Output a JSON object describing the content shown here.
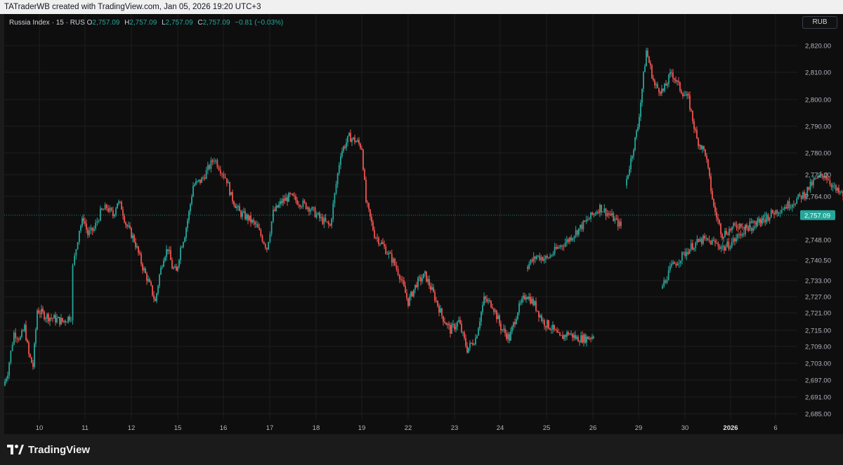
{
  "header": {
    "attribution": "TATraderWB created with TradingView.com, Jan 05, 2026 19:20 UTC+3"
  },
  "legend": {
    "symbol": "Russia Index · 15 · RUS",
    "open_label": "O",
    "open": "2,757.09",
    "high_label": "H",
    "high": "2,757.09",
    "low_label": "L",
    "low": "2,757.09",
    "close_label": "C",
    "close": "2,757.09",
    "change": "−0.81 (−0.03%)"
  },
  "currency_button": "RUB",
  "brand": {
    "name": "TradingView"
  },
  "colors": {
    "up": "#26a69a",
    "down": "#ef5350",
    "price_label_bg": "#26a69a",
    "grid": "#1e1e1e"
  },
  "chart_data": {
    "type": "candlestick",
    "y_axis_ticks": [
      "2,820.00",
      "2,810.00",
      "2,800.00",
      "2,790.00",
      "2,780.00",
      "2,772.00",
      "2,764.00",
      "2,757.09",
      "2,748.00",
      "2,740.50",
      "2,733.00",
      "2,727.00",
      "2,721.00",
      "2,715.00",
      "2,709.00",
      "2,703.00",
      "2,697.00",
      "2,691.00",
      "2,685.00"
    ],
    "y_axis_values": [
      2820,
      2810,
      2800,
      2790,
      2780,
      2772,
      2764,
      2748,
      2740.5,
      2733,
      2727,
      2721,
      2715,
      2709,
      2703,
      2697,
      2691,
      2685
    ],
    "current_price": 2757.09,
    "current_price_label": "2,757.09",
    "x_axis_ticks": [
      "10",
      "11",
      "12",
      "15",
      "16",
      "17",
      "18",
      "19",
      "22",
      "23",
      "24",
      "25",
      "26",
      "29",
      "30",
      "2026",
      "6"
    ],
    "x_axis_bold": "2026",
    "close_path": [
      [
        0,
        2695
      ],
      [
        0.02,
        2700
      ],
      [
        0.05,
        2714
      ],
      [
        0.08,
        2712
      ],
      [
        0.1,
        2716
      ],
      [
        0.12,
        2706
      ],
      [
        0.14,
        2702
      ],
      [
        0.16,
        2722
      ],
      [
        0.2,
        2720
      ],
      [
        0.24,
        2719
      ],
      [
        0.28,
        2718
      ],
      [
        0.32,
        2720
      ],
      [
        0.33,
        2738
      ],
      [
        0.36,
        2752
      ],
      [
        0.38,
        2756
      ],
      [
        0.4,
        2750
      ],
      [
        0.43,
        2752
      ],
      [
        0.46,
        2758
      ],
      [
        0.49,
        2760
      ],
      [
        0.52,
        2757
      ],
      [
        0.54,
        2762
      ],
      [
        0.56,
        2760
      ],
      [
        0.58,
        2754
      ],
      [
        0.62,
        2748
      ],
      [
        0.66,
        2738
      ],
      [
        0.7,
        2730
      ],
      [
        0.72,
        2725
      ],
      [
        0.74,
        2735
      ],
      [
        0.76,
        2742
      ],
      [
        0.78,
        2745
      ],
      [
        0.8,
        2738
      ],
      [
        0.82,
        2736
      ],
      [
        0.84,
        2745
      ],
      [
        0.86,
        2750
      ],
      [
        0.88,
        2758
      ],
      [
        0.9,
        2768
      ],
      [
        0.94,
        2770
      ],
      [
        0.97,
        2774
      ],
      [
        1.0,
        2778
      ],
      [
        1.03,
        2774
      ],
      [
        1.06,
        2770
      ],
      [
        1.08,
        2764
      ],
      [
        1.12,
        2758
      ],
      [
        1.16,
        2756
      ],
      [
        1.2,
        2753
      ],
      [
        1.25,
        2745
      ],
      [
        1.28,
        2758
      ],
      [
        1.32,
        2762
      ],
      [
        1.36,
        2764
      ],
      [
        1.4,
        2762
      ],
      [
        1.45,
        2760
      ],
      [
        1.5,
        2756
      ],
      [
        1.55,
        2753
      ],
      [
        1.6,
        2780
      ],
      [
        1.64,
        2786
      ],
      [
        1.68,
        2784
      ],
      [
        1.7,
        2782
      ],
      [
        1.72,
        2762
      ],
      [
        1.76,
        2750
      ],
      [
        1.8,
        2746
      ],
      [
        1.85,
        2740
      ],
      [
        1.88,
        2735
      ],
      [
        1.92,
        2725
      ],
      [
        1.96,
        2732
      ],
      [
        2.0,
        2735
      ],
      [
        2.04,
        2728
      ],
      [
        2.08,
        2720
      ],
      [
        2.12,
        2715
      ],
      [
        2.16,
        2718
      ],
      [
        2.2,
        2708
      ],
      [
        2.24,
        2712
      ],
      [
        2.28,
        2726
      ],
      [
        2.32,
        2724
      ],
      [
        2.36,
        2716
      ],
      [
        2.4,
        2712
      ],
      [
        2.44,
        2722
      ],
      [
        2.48,
        2728
      ],
      [
        2.52,
        2724
      ],
      [
        2.56,
        2718
      ],
      [
        2.6,
        2716
      ],
      [
        2.64,
        2712
      ],
      [
        2.68,
        2714
      ],
      [
        2.72,
        2712
      ],
      [
        2.76,
        2712
      ],
      [
        2.8,
        2713
      ]
    ],
    "segments": [
      {
        "x0": 2.48,
        "pts": [
          [
            0,
            2738
          ],
          [
            0.05,
            2742
          ],
          [
            0.1,
            2741
          ],
          [
            0.15,
            2745
          ],
          [
            0.2,
            2748
          ],
          [
            0.25,
            2752
          ],
          [
            0.3,
            2756
          ],
          [
            0.35,
            2760
          ],
          [
            0.4,
            2757
          ],
          [
            0.45,
            2753
          ]
        ]
      },
      {
        "x0": 2.95,
        "pts": [
          [
            0,
            2768
          ],
          [
            0.02,
            2775
          ],
          [
            0.06,
            2790
          ],
          [
            0.1,
            2818
          ],
          [
            0.14,
            2805
          ],
          [
            0.18,
            2803
          ],
          [
            0.22,
            2810
          ],
          [
            0.26,
            2804
          ],
          [
            0.3,
            2800
          ],
          [
            0.34,
            2785
          ],
          [
            0.38,
            2780
          ],
          [
            0.42,
            2760
          ],
          [
            0.46,
            2750
          ],
          [
            0.5,
            2752
          ],
          [
            0.55,
            2754
          ],
          [
            0.6,
            2752
          ],
          [
            0.65,
            2755
          ],
          [
            0.7,
            2758
          ],
          [
            0.75,
            2760
          ],
          [
            0.8,
            2762
          ],
          [
            0.85,
            2765
          ],
          [
            0.9,
            2770
          ],
          [
            0.95,
            2772
          ],
          [
            1.0,
            2766
          ],
          [
            1.04,
            2764
          ]
        ]
      },
      {
        "x0": 3.12,
        "pts": [
          [
            0,
            2730
          ],
          [
            0.05,
            2738
          ],
          [
            0.1,
            2742
          ],
          [
            0.15,
            2746
          ],
          [
            0.2,
            2748
          ],
          [
            0.25,
            2747
          ],
          [
            0.3,
            2745
          ],
          [
            0.35,
            2748
          ],
          [
            0.4,
            2752
          ],
          [
            0.45,
            2755
          ],
          [
            0.5,
            2757
          ]
        ]
      }
    ]
  }
}
